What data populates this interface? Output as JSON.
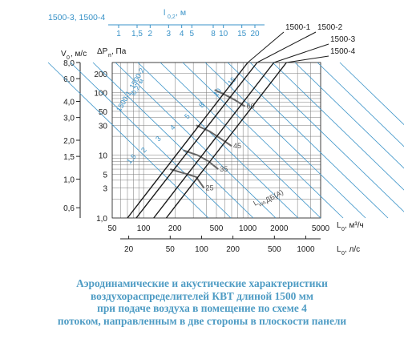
{
  "chart_data": {
    "type": "line",
    "top_scale": {
      "series_label": "1500-3, 1500-4",
      "label": "l",
      "label_sub": "0,2",
      "label_unit": ", м",
      "ticks": [
        "1",
        "1,5",
        "2",
        "3",
        "4",
        "5",
        "8",
        "10",
        "15",
        "20"
      ]
    },
    "left_axis": {
      "label": "V",
      "label_sub": "0",
      "label_unit": ", м/с",
      "ticks": [
        "8,0",
        "6,0",
        "4,0",
        "3,0",
        "2,0",
        "1,5",
        "1,0",
        "0,6"
      ]
    },
    "pressure_axis": {
      "label": "ΔP",
      "label_sub": "п",
      "label_unit": ", Па",
      "ticks": [
        "1,0",
        "3",
        "5",
        "10",
        "30",
        "50",
        "100",
        "200"
      ],
      "scale": "log",
      "range": [
        1,
        300
      ]
    },
    "x_axis_m3h": {
      "label": "L",
      "label_sub": "0",
      "label_unit": ", м³/ч",
      "ticks": [
        "50",
        "100",
        "200",
        "500",
        "1000",
        "2000",
        "5000"
      ],
      "scale": "log",
      "range": [
        50,
        5000
      ]
    },
    "x_axis_ls": {
      "label": "L",
      "label_sub": "0",
      "label_unit": ", л/с",
      "ticks": [
        "20",
        "50",
        "100",
        "200",
        "500",
        "1000"
      ]
    },
    "series": [
      {
        "name": "1500-1",
        "points": [
          [
            70,
            1
          ],
          [
            1000,
            300
          ]
        ]
      },
      {
        "name": "1500-2",
        "points": [
          [
            85,
            1
          ],
          [
            1230,
            300
          ]
        ]
      },
      {
        "name": "1500-3",
        "points": [
          [
            125,
            1
          ],
          [
            1780,
            300
          ]
        ]
      },
      {
        "name": "1500-4",
        "points": [
          [
            165,
            1
          ],
          [
            2350,
            300
          ]
        ]
      }
    ],
    "diagonal_annotations": {
      "top_scale_series_label": "1500-1, 1500-2",
      "l02_series_label": "l0,2, м",
      "values": [
        "1,5",
        "2",
        "3",
        "4",
        "5",
        "8",
        "10",
        "15"
      ]
    },
    "noise_curves": {
      "values": [
        "25",
        "35",
        "45",
        "60"
      ],
      "label": "L",
      "label_sub": "WA",
      "label_unit": " ДБ(А)"
    },
    "colors": {
      "blue": "#3a93c8",
      "black": "#1a1a1a",
      "caption": "#4f9cc4"
    }
  },
  "caption": [
    "Аэродинамические и акустические характеристики",
    "воздухораспределителей КВТ длиной 1500 мм",
    "при подаче воздуха в помещение по схеме 4",
    "потоком, направленным в две стороны в плоскости панели"
  ]
}
